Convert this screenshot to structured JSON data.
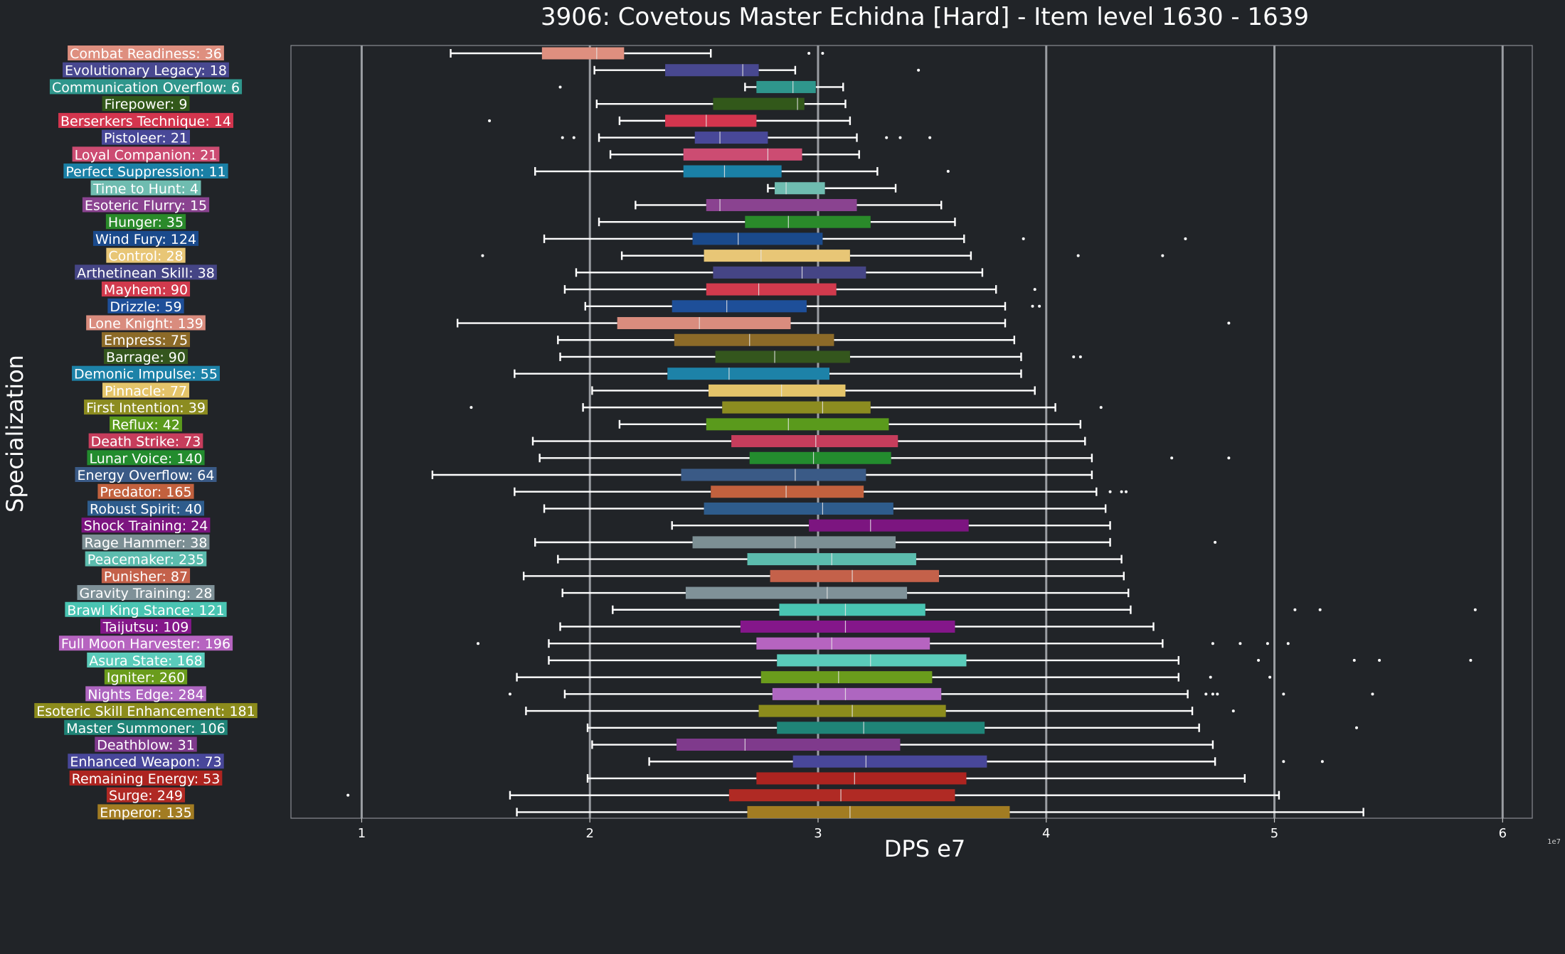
{
  "chart_data": {
    "type": "box",
    "title": "3906: Covetous Master Echidna [Hard] - Item level 1630 - 1639",
    "xlabel": "DPS e7",
    "ylabel": "Specialization",
    "scale_note": "1e7",
    "xlim": [
      0.69,
      6.13
    ],
    "xticks": [
      1,
      2,
      3,
      4,
      5,
      6
    ],
    "grid": "vertical lines at x ticks",
    "series": [
      {
        "label": "Combat Readiness: 36",
        "color": "#de8f7f",
        "whisker_low": 1.39,
        "q1": 1.79,
        "median": 2.03,
        "q3": 2.15,
        "whisker_high": 2.53,
        "outliers": [
          2.96,
          3.02
        ]
      },
      {
        "label": "Evolutionary Legacy: 18",
        "color": "#484890",
        "whisker_low": 2.02,
        "q1": 2.33,
        "median": 2.67,
        "q3": 2.74,
        "whisker_high": 2.9,
        "outliers": [
          3.44
        ]
      },
      {
        "label": "Communication Overflow: 6",
        "color": "#2f968c",
        "whisker_low": 2.68,
        "q1": 2.73,
        "median": 2.89,
        "q3": 2.99,
        "whisker_high": 3.11,
        "outliers": [
          1.87
        ]
      },
      {
        "label": "Firepower: 9",
        "color": "#32581a",
        "whisker_low": 2.03,
        "q1": 2.54,
        "median": 2.91,
        "q3": 2.94,
        "whisker_high": 3.12,
        "outliers": []
      },
      {
        "label": "Berserkers Technique: 14",
        "color": "#d3354e",
        "whisker_low": 2.13,
        "q1": 2.33,
        "median": 2.51,
        "q3": 2.73,
        "whisker_high": 3.14,
        "outliers": [
          1.56
        ]
      },
      {
        "label": "Pistoleer: 21",
        "color": "#484898",
        "whisker_low": 2.04,
        "q1": 2.46,
        "median": 2.57,
        "q3": 2.78,
        "whisker_high": 3.17,
        "outliers": [
          1.88,
          1.93,
          3.3,
          3.36,
          3.49
        ]
      },
      {
        "label": "Loyal Companion: 21",
        "color": "#cc4c72",
        "whisker_low": 2.09,
        "q1": 2.41,
        "median": 2.78,
        "q3": 2.93,
        "whisker_high": 3.18,
        "outliers": []
      },
      {
        "label": "Perfect Suppression: 11",
        "color": "#1a80a6",
        "whisker_low": 1.76,
        "q1": 2.41,
        "median": 2.59,
        "q3": 2.84,
        "whisker_high": 3.26,
        "outliers": [
          3.57
        ]
      },
      {
        "label": "Time to Hunt: 4",
        "color": "#6fbcb0",
        "whisker_low": 2.78,
        "q1": 2.81,
        "median": 2.86,
        "q3": 3.03,
        "whisker_high": 3.34,
        "outliers": []
      },
      {
        "label": "Esoteric Flurry: 15",
        "color": "#8a4390",
        "whisker_low": 2.2,
        "q1": 2.51,
        "median": 2.57,
        "q3": 3.17,
        "whisker_high": 3.54,
        "outliers": []
      },
      {
        "label": "Hunger: 35",
        "color": "#2a8a2a",
        "whisker_low": 2.04,
        "q1": 2.68,
        "median": 2.87,
        "q3": 3.23,
        "whisker_high": 3.6,
        "outliers": []
      },
      {
        "label": "Wind Fury: 124",
        "color": "#1a4a8c",
        "whisker_low": 1.8,
        "q1": 2.45,
        "median": 2.65,
        "q3": 3.02,
        "whisker_high": 3.64,
        "outliers": [
          3.9,
          4.61
        ]
      },
      {
        "label": "Control: 28",
        "color": "#e8c676",
        "whisker_low": 2.14,
        "q1": 2.5,
        "median": 2.75,
        "q3": 3.14,
        "whisker_high": 3.67,
        "outliers": [
          1.53,
          4.14,
          4.51
        ]
      },
      {
        "label": "Arthetinean Skill: 38",
        "color": "#454585",
        "whisker_low": 1.94,
        "q1": 2.54,
        "median": 2.93,
        "q3": 3.21,
        "whisker_high": 3.72,
        "outliers": []
      },
      {
        "label": "Mayhem: 90",
        "color": "#d13a4d",
        "whisker_low": 1.89,
        "q1": 2.51,
        "median": 2.74,
        "q3": 3.08,
        "whisker_high": 3.78,
        "outliers": [
          3.95
        ]
      },
      {
        "label": "Drizzle: 59",
        "color": "#1e4f99",
        "whisker_low": 1.98,
        "q1": 2.36,
        "median": 2.6,
        "q3": 2.95,
        "whisker_high": 3.82,
        "outliers": [
          3.94,
          3.97
        ]
      },
      {
        "label": "Lone Knight: 139",
        "color": "#d98c7e",
        "whisker_low": 1.42,
        "q1": 2.12,
        "median": 2.48,
        "q3": 2.88,
        "whisker_high": 3.82,
        "outliers": [
          4.8
        ]
      },
      {
        "label": "Empress: 75",
        "color": "#8c6a28",
        "whisker_low": 1.86,
        "q1": 2.37,
        "median": 2.7,
        "q3": 3.07,
        "whisker_high": 3.86,
        "outliers": []
      },
      {
        "label": "Barrage: 90",
        "color": "#34561d",
        "whisker_low": 1.87,
        "q1": 2.55,
        "median": 2.81,
        "q3": 3.14,
        "whisker_high": 3.89,
        "outliers": [
          4.12,
          4.15
        ]
      },
      {
        "label": "Demonic Impulse: 55",
        "color": "#1d82a8",
        "whisker_low": 1.67,
        "q1": 2.34,
        "median": 2.61,
        "q3": 3.05,
        "whisker_high": 3.89,
        "outliers": []
      },
      {
        "label": "Pinnacle: 77",
        "color": "#e4c46a",
        "whisker_low": 2.01,
        "q1": 2.52,
        "median": 2.84,
        "q3": 3.12,
        "whisker_high": 3.95,
        "outliers": []
      },
      {
        "label": "First Intention: 39",
        "color": "#8c8c20",
        "whisker_low": 1.97,
        "q1": 2.58,
        "median": 3.02,
        "q3": 3.23,
        "whisker_high": 4.04,
        "outliers": [
          1.48,
          4.24
        ]
      },
      {
        "label": "Reflux: 42",
        "color": "#5a9a1c",
        "whisker_low": 2.13,
        "q1": 2.51,
        "median": 2.87,
        "q3": 3.31,
        "whisker_high": 4.15,
        "outliers": []
      },
      {
        "label": "Death Strike: 73",
        "color": "#c63d5c",
        "whisker_low": 1.75,
        "q1": 2.62,
        "median": 2.99,
        "q3": 3.35,
        "whisker_high": 4.17,
        "outliers": []
      },
      {
        "label": "Lunar Voice: 140",
        "color": "#238c2e",
        "whisker_low": 1.78,
        "q1": 2.7,
        "median": 2.98,
        "q3": 3.32,
        "whisker_high": 4.2,
        "outliers": [
          4.55,
          4.8
        ]
      },
      {
        "label": "Energy Overflow: 64",
        "color": "#3a5a86",
        "whisker_low": 1.31,
        "q1": 2.4,
        "median": 2.9,
        "q3": 3.21,
        "whisker_high": 4.2,
        "outliers": []
      },
      {
        "label": "Predator: 165",
        "color": "#c2613e",
        "whisker_low": 1.67,
        "q1": 2.53,
        "median": 2.86,
        "q3": 3.2,
        "whisker_high": 4.22,
        "outliers": [
          4.28,
          4.33,
          4.35
        ]
      },
      {
        "label": "Robust Spirit: 40",
        "color": "#2e5c8c",
        "whisker_low": 1.8,
        "q1": 2.5,
        "median": 3.02,
        "q3": 3.33,
        "whisker_high": 4.26,
        "outliers": []
      },
      {
        "label": "Shock Training: 24",
        "color": "#7c1580",
        "whisker_low": 2.36,
        "q1": 2.96,
        "median": 3.23,
        "q3": 3.66,
        "whisker_high": 4.28,
        "outliers": []
      },
      {
        "label": "Rage Hammer: 38",
        "color": "#7c8f94",
        "whisker_low": 1.76,
        "q1": 2.45,
        "median": 2.9,
        "q3": 3.34,
        "whisker_high": 4.28,
        "outliers": [
          4.74
        ]
      },
      {
        "label": "Peacemaker: 235",
        "color": "#5cbcae",
        "whisker_low": 1.86,
        "q1": 2.69,
        "median": 3.06,
        "q3": 3.43,
        "whisker_high": 4.33,
        "outliers": []
      },
      {
        "label": "Punisher: 87",
        "color": "#c4614a",
        "whisker_low": 1.71,
        "q1": 2.79,
        "median": 3.15,
        "q3": 3.53,
        "whisker_high": 4.34,
        "outliers": []
      },
      {
        "label": "Gravity Training: 28",
        "color": "#7f9198",
        "whisker_low": 1.88,
        "q1": 2.42,
        "median": 3.04,
        "q3": 3.39,
        "whisker_high": 4.36,
        "outliers": []
      },
      {
        "label": "Brawl King Stance: 121",
        "color": "#49c4b2",
        "whisker_low": 2.1,
        "q1": 2.83,
        "median": 3.12,
        "q3": 3.47,
        "whisker_high": 4.37,
        "outliers": [
          5.09,
          5.2,
          5.88
        ]
      },
      {
        "label": "Taijutsu: 109",
        "color": "#84178a",
        "whisker_low": 1.87,
        "q1": 2.66,
        "median": 3.12,
        "q3": 3.6,
        "whisker_high": 4.47,
        "outliers": []
      },
      {
        "label": "Full Moon Harvester: 196",
        "color": "#b664c0",
        "whisker_low": 1.82,
        "q1": 2.73,
        "median": 3.06,
        "q3": 3.49,
        "whisker_high": 4.51,
        "outliers": [
          1.51,
          4.73,
          4.85,
          4.97,
          5.06
        ]
      },
      {
        "label": "Asura State: 168",
        "color": "#5acbba",
        "whisker_low": 1.82,
        "q1": 2.82,
        "median": 3.23,
        "q3": 3.65,
        "whisker_high": 4.58,
        "outliers": [
          4.93,
          5.35,
          5.46,
          5.86
        ]
      },
      {
        "label": "Igniter: 260",
        "color": "#6a9c1c",
        "whisker_low": 1.68,
        "q1": 2.75,
        "median": 3.09,
        "q3": 3.5,
        "whisker_high": 4.58,
        "outliers": [
          4.72,
          4.98
        ]
      },
      {
        "label": "Nights Edge: 284",
        "color": "#ae66c0",
        "whisker_low": 1.89,
        "q1": 2.8,
        "median": 3.12,
        "q3": 3.54,
        "whisker_high": 4.62,
        "outliers": [
          1.65,
          4.7,
          4.73,
          4.75,
          5.04,
          5.43
        ]
      },
      {
        "label": "Esoteric Skill Enhancement: 181",
        "color": "#8c8c1c",
        "whisker_low": 1.72,
        "q1": 2.74,
        "median": 3.15,
        "q3": 3.56,
        "whisker_high": 4.64,
        "outliers": [
          4.82
        ]
      },
      {
        "label": "Master Summoner: 106",
        "color": "#1f8477",
        "whisker_low": 1.99,
        "q1": 2.82,
        "median": 3.2,
        "q3": 3.73,
        "whisker_high": 4.67,
        "outliers": [
          5.36
        ]
      },
      {
        "label": "Deathblow: 31",
        "color": "#7f3a8c",
        "whisker_low": 2.01,
        "q1": 2.38,
        "median": 2.68,
        "q3": 3.36,
        "whisker_high": 4.73,
        "outliers": []
      },
      {
        "label": "Enhanced Weapon: 73",
        "color": "#48479a",
        "whisker_low": 2.26,
        "q1": 2.89,
        "median": 3.21,
        "q3": 3.74,
        "whisker_high": 4.74,
        "outliers": [
          5.04,
          5.21
        ]
      },
      {
        "label": "Remaining Energy: 53",
        "color": "#ad2420",
        "whisker_low": 1.99,
        "q1": 2.73,
        "median": 3.16,
        "q3": 3.65,
        "whisker_high": 4.87,
        "outliers": []
      },
      {
        "label": "Surge: 249",
        "color": "#b02a24",
        "whisker_low": 1.65,
        "q1": 2.61,
        "median": 3.1,
        "q3": 3.6,
        "whisker_high": 5.02,
        "outliers": [
          0.94
        ]
      },
      {
        "label": "Emperor: 135",
        "color": "#a27c22",
        "whisker_low": 1.68,
        "q1": 2.69,
        "median": 3.14,
        "q3": 3.84,
        "whisker_high": 5.39,
        "outliers": []
      }
    ]
  }
}
